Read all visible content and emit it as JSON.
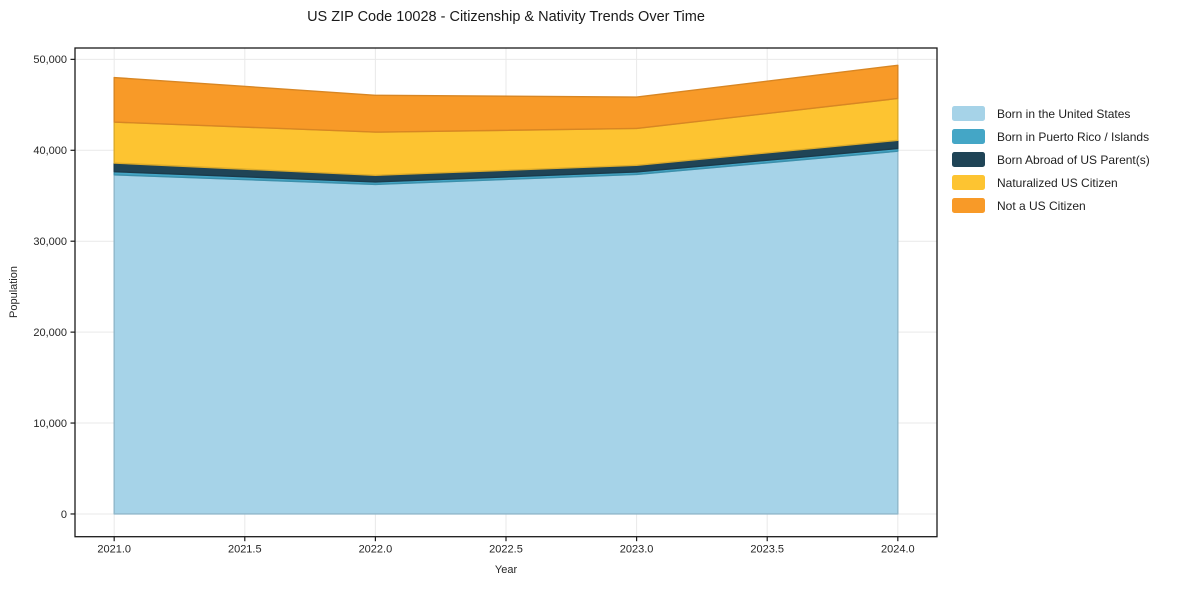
{
  "figure": {
    "title": "US ZIP Code 10028 - Citizenship & Nativity Trends Over Time"
  },
  "chart_data": {
    "type": "area",
    "stacked": true,
    "title": "US ZIP Code 10028 - Citizenship & Nativity Trends Over Time",
    "xlabel": "Year",
    "ylabel": "Population",
    "grid": true,
    "legend_position": "right",
    "x": [
      2021.0,
      2022.0,
      2023.0,
      2024.0
    ],
    "xlim": [
      2020.85,
      2024.15
    ],
    "ylim": [
      -2500,
      51250
    ],
    "x_tick_values": [
      2021.0,
      2021.5,
      2022.0,
      2022.5,
      2023.0,
      2023.5,
      2024.0
    ],
    "x_tick_labels": [
      "2021.0",
      "2021.5",
      "2022.0",
      "2022.5",
      "2023.0",
      "2023.5",
      "2024.0"
    ],
    "y_tick_values": [
      0,
      10000,
      20000,
      30000,
      40000,
      50000
    ],
    "y_tick_labels": [
      "0",
      "10,000",
      "20,000",
      "30,000",
      "40,000",
      "50,000"
    ],
    "series": [
      {
        "name": "Born in the United States",
        "color": "#a6d3e8",
        "values": [
          37300,
          36250,
          37350,
          39900
        ]
      },
      {
        "name": "Born in Puerto Rico / Islands",
        "color": "#44a6c6",
        "values": [
          350,
          270,
          270,
          300
        ]
      },
      {
        "name": "Born Abroad of US Parent(s)",
        "color": "#1f4456",
        "values": [
          950,
          730,
          730,
          900
        ]
      },
      {
        "name": "Naturalized US Citizen",
        "color": "#fdc431",
        "values": [
          4500,
          4750,
          4050,
          4600
        ]
      },
      {
        "name": "Not a US Citizen",
        "color": "#f89a28",
        "values": [
          4900,
          4050,
          3450,
          3650
        ]
      }
    ],
    "totals": [
      48000,
      46050,
      45850,
      49350
    ],
    "style": {
      "grid_color": "#e9e9e9",
      "spine_color": "#1a1a1a",
      "tick_color": "#1a1a1a",
      "background": "#ffffff"
    }
  }
}
